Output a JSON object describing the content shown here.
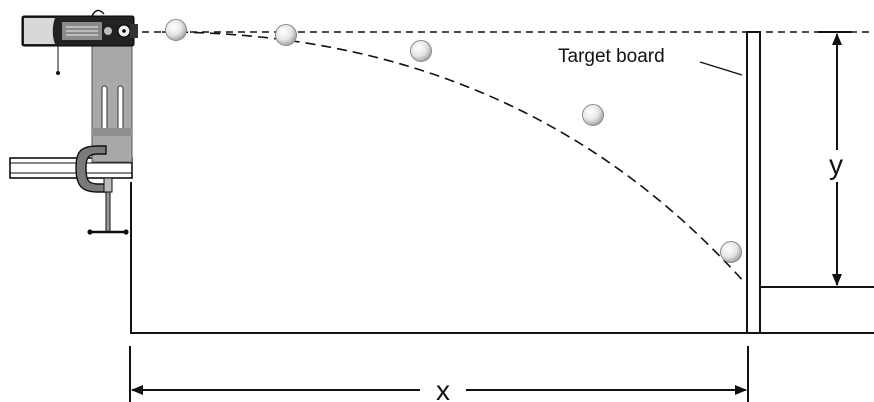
{
  "labels": {
    "target_board": "Target board",
    "horizontal_distance": "x",
    "vertical_drop": "y"
  },
  "ball_count": 5,
  "colors": {
    "line": "#111111",
    "launcher_body": "#222222",
    "launcher_face": "#8a8a8a",
    "stand": "#a9a9a9",
    "ball": "#e8e8e8"
  }
}
